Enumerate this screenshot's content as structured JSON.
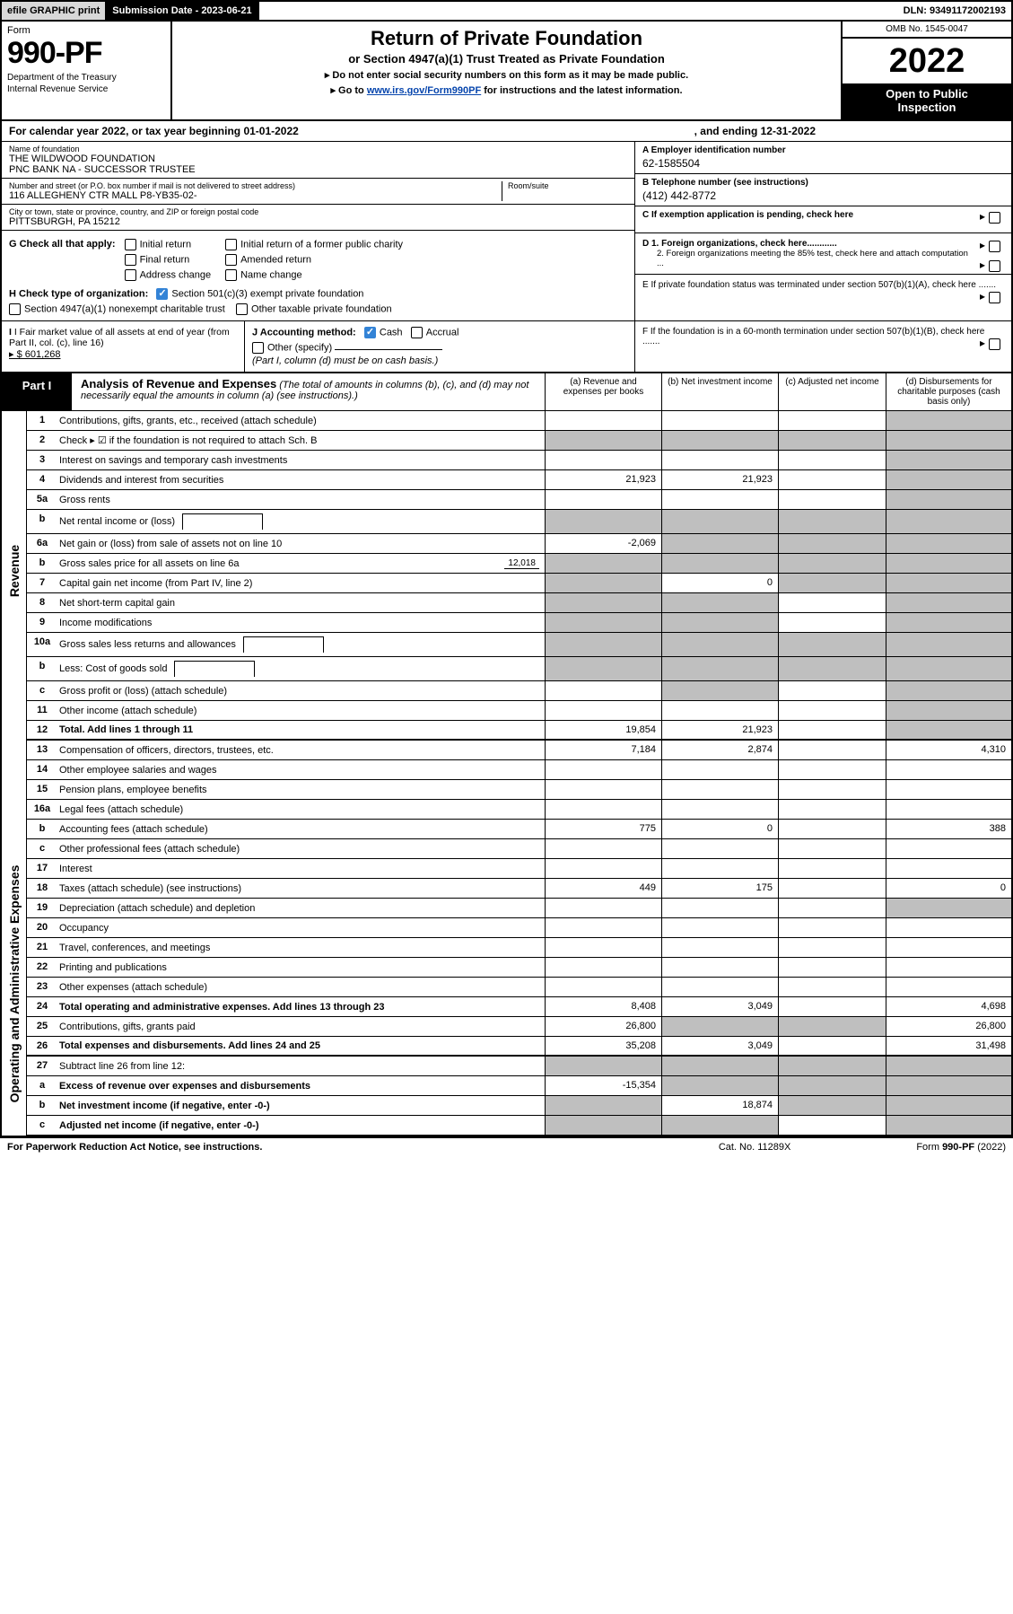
{
  "top_bar": {
    "efile": "efile GRAPHIC print",
    "submission_label": "Submission Date - 2023-06-21",
    "dln": "DLN: 93491172002193"
  },
  "header": {
    "form_word": "Form",
    "form_number": "990-PF",
    "dept": "Department of the Treasury",
    "irs": "Internal Revenue Service",
    "title": "Return of Private Foundation",
    "subtitle": "or Section 4947(a)(1) Trust Treated as Private Foundation",
    "instr1": "▸ Do not enter social security numbers on this form as it may be made public.",
    "instr2_pre": "▸ Go to ",
    "instr2_link": "www.irs.gov/Form990PF",
    "instr2_post": " for instructions and the latest information.",
    "omb": "OMB No. 1545-0047",
    "year": "2022",
    "inspect1": "Open to Public",
    "inspect2": "Inspection"
  },
  "calendar": {
    "text": "For calendar year 2022, or tax year beginning 01-01-2022",
    "ending": ", and ending 12-31-2022"
  },
  "foundation": {
    "name_lbl": "Name of foundation",
    "name1": "THE WILDWOOD FOUNDATION",
    "name2": "PNC BANK NA - SUCCESSOR TRUSTEE",
    "addr_lbl": "Number and street (or P.O. box number if mail is not delivered to street address)",
    "addr": "116 ALLEGHENY CTR MALL P8-YB35-02-",
    "room_lbl": "Room/suite",
    "city_lbl": "City or town, state or province, country, and ZIP or foreign postal code",
    "city": "PITTSBURGH, PA  15212",
    "ein_lbl": "A Employer identification number",
    "ein": "62-1585504",
    "phone_lbl": "B Telephone number (see instructions)",
    "phone": "(412) 442-8772",
    "c_lbl": "C If exemption application is pending, check here"
  },
  "checks": {
    "g_lbl": "G Check all that apply:",
    "g_opts": [
      "Initial return",
      "Final return",
      "Address change",
      "Initial return of a former public charity",
      "Amended return",
      "Name change"
    ],
    "h_lbl": "H Check type of organization:",
    "h1": "Section 501(c)(3) exempt private foundation",
    "h2": "Section 4947(a)(1) nonexempt charitable trust",
    "h3": "Other taxable private foundation",
    "d_lbl": "D 1. Foreign organizations, check here............",
    "d2": "2. Foreign organizations meeting the 85% test, check here and attach computation ...",
    "e_lbl": "E  If private foundation status was terminated under section 507(b)(1)(A), check here .......",
    "i_lbl": "I Fair market value of all assets at end of year (from Part II, col. (c), line 16)",
    "i_amt": "▸ $  601,268",
    "j_lbl": "J Accounting method:",
    "j_cash": "Cash",
    "j_accrual": "Accrual",
    "j_other": "Other (specify)",
    "j_note": "(Part I, column (d) must be on cash basis.)",
    "f_lbl": "F  If the foundation is in a 60-month termination under section 507(b)(1)(B), check here ......."
  },
  "part1": {
    "tab": "Part I",
    "title": "Analysis of Revenue and Expenses",
    "note": "(The total of amounts in columns (b), (c), and (d) may not necessarily equal the amounts in column (a) (see instructions).)",
    "col_a": "(a)  Revenue and expenses per books",
    "col_b": "(b)  Net investment income",
    "col_c": "(c)  Adjusted net income",
    "col_d": "(d)  Disbursements for charitable purposes (cash basis only)"
  },
  "side_labels": {
    "revenue": "Revenue",
    "expenses": "Operating and Administrative Expenses"
  },
  "lines": [
    {
      "num": "1",
      "desc": "Contributions, gifts, grants, etc., received (attach schedule)",
      "a": "",
      "b": "",
      "c": "",
      "d": "",
      "d_grey": true,
      "c_grey": false
    },
    {
      "num": "2",
      "desc": "Check ▸ ☑ if the foundation is not required to attach Sch. B",
      "dots": true,
      "no_cells": true
    },
    {
      "num": "3",
      "desc": "Interest on savings and temporary cash investments",
      "a": "",
      "b": "",
      "c": "",
      "d": "",
      "d_grey": true
    },
    {
      "num": "4",
      "desc": "Dividends and interest from securities",
      "dots": true,
      "a": "21,923",
      "b": "21,923",
      "c": "",
      "d": "",
      "d_grey": true
    },
    {
      "num": "5a",
      "desc": "Gross rents",
      "dots": true,
      "a": "",
      "b": "",
      "c": "",
      "d": "",
      "d_grey": true
    },
    {
      "num": "b",
      "desc": "Net rental income or (loss)",
      "inset": true,
      "a": "",
      "b": "",
      "c": "",
      "d": "",
      "all_grey": true
    },
    {
      "num": "6a",
      "desc": "Net gain or (loss) from sale of assets not on line 10",
      "a": "-2,069",
      "b": "",
      "c": "",
      "d": "",
      "bcd_grey": true
    },
    {
      "num": "b",
      "desc": "Gross sales price for all assets on line 6a",
      "inset_val": "12,018",
      "all_grey": true
    },
    {
      "num": "7",
      "desc": "Capital gain net income (from Part IV, line 2)",
      "dots": true,
      "a": "",
      "b": "0",
      "c": "",
      "d": "",
      "a_grey": true,
      "cd_grey": true
    },
    {
      "num": "8",
      "desc": "Net short-term capital gain",
      "dots": true,
      "a": "",
      "b": "",
      "c": "",
      "d": "",
      "ab_grey": true,
      "d_grey": true
    },
    {
      "num": "9",
      "desc": "Income modifications",
      "dots": true,
      "a": "",
      "b": "",
      "c": "",
      "d": "",
      "ab_grey": true,
      "d_grey": true
    },
    {
      "num": "10a",
      "desc": "Gross sales less returns and allowances",
      "inset": true,
      "all_grey": true
    },
    {
      "num": "b",
      "desc": "Less: Cost of goods sold",
      "dots": true,
      "inset": true,
      "all_grey": true
    },
    {
      "num": "c",
      "desc": "Gross profit or (loss) (attach schedule)",
      "dots": true,
      "a": "",
      "b": "",
      "c": "",
      "d": "",
      "b_grey": true,
      "d_grey": true
    },
    {
      "num": "11",
      "desc": "Other income (attach schedule)",
      "dots": true,
      "a": "",
      "b": "",
      "c": "",
      "d": "",
      "d_grey": true
    },
    {
      "num": "12",
      "desc": "Total. Add lines 1 through 11",
      "dots": true,
      "bold": true,
      "a": "19,854",
      "b": "21,923",
      "c": "",
      "d": "",
      "d_grey": true
    },
    {
      "num": "13",
      "desc": "Compensation of officers, directors, trustees, etc.",
      "a": "7,184",
      "b": "2,874",
      "c": "",
      "d": "4,310"
    },
    {
      "num": "14",
      "desc": "Other employee salaries and wages",
      "dots": true,
      "a": "",
      "b": "",
      "c": "",
      "d": ""
    },
    {
      "num": "15",
      "desc": "Pension plans, employee benefits",
      "dots": true,
      "a": "",
      "b": "",
      "c": "",
      "d": ""
    },
    {
      "num": "16a",
      "desc": "Legal fees (attach schedule)",
      "dots": true,
      "a": "",
      "b": "",
      "c": "",
      "d": ""
    },
    {
      "num": "b",
      "desc": "Accounting fees (attach schedule)",
      "dots": true,
      "a": "775",
      "b": "0",
      "c": "",
      "d": "388"
    },
    {
      "num": "c",
      "desc": "Other professional fees (attach schedule)",
      "dots": true,
      "a": "",
      "b": "",
      "c": "",
      "d": ""
    },
    {
      "num": "17",
      "desc": "Interest",
      "dots": true,
      "a": "",
      "b": "",
      "c": "",
      "d": ""
    },
    {
      "num": "18",
      "desc": "Taxes (attach schedule) (see instructions)",
      "dots": true,
      "a": "449",
      "b": "175",
      "c": "",
      "d": "0"
    },
    {
      "num": "19",
      "desc": "Depreciation (attach schedule) and depletion",
      "dots": true,
      "a": "",
      "b": "",
      "c": "",
      "d": "",
      "d_grey": true
    },
    {
      "num": "20",
      "desc": "Occupancy",
      "dots": true,
      "a": "",
      "b": "",
      "c": "",
      "d": ""
    },
    {
      "num": "21",
      "desc": "Travel, conferences, and meetings",
      "dots": true,
      "a": "",
      "b": "",
      "c": "",
      "d": ""
    },
    {
      "num": "22",
      "desc": "Printing and publications",
      "dots": true,
      "a": "",
      "b": "",
      "c": "",
      "d": ""
    },
    {
      "num": "23",
      "desc": "Other expenses (attach schedule)",
      "dots": true,
      "a": "",
      "b": "",
      "c": "",
      "d": ""
    },
    {
      "num": "24",
      "desc": "Total operating and administrative expenses. Add lines 13 through 23",
      "dots": true,
      "bold": true,
      "a": "8,408",
      "b": "3,049",
      "c": "",
      "d": "4,698"
    },
    {
      "num": "25",
      "desc": "Contributions, gifts, grants paid",
      "dots": true,
      "a": "26,800",
      "b": "",
      "c": "",
      "d": "26,800",
      "bc_grey": true
    },
    {
      "num": "26",
      "desc": "Total expenses and disbursements. Add lines 24 and 25",
      "bold": true,
      "a": "35,208",
      "b": "3,049",
      "c": "",
      "d": "31,498"
    },
    {
      "num": "27",
      "desc": "Subtract line 26 from line 12:",
      "all_grey": true
    },
    {
      "num": "a",
      "desc": "Excess of revenue over expenses and disbursements",
      "bold": true,
      "a": "-15,354",
      "b": "",
      "c": "",
      "d": "",
      "bcd_grey": true
    },
    {
      "num": "b",
      "desc": "Net investment income (if negative, enter -0-)",
      "bold": true,
      "a": "",
      "b": "18,874",
      "c": "",
      "d": "",
      "a_grey": true,
      "cd_grey": true
    },
    {
      "num": "c",
      "desc": "Adjusted net income (if negative, enter -0-)",
      "dots": true,
      "bold": true,
      "a": "",
      "b": "",
      "c": "",
      "d": "",
      "ab_grey": true,
      "d_grey": true
    }
  ],
  "footer": {
    "left": "For Paperwork Reduction Act Notice, see instructions.",
    "mid": "Cat. No. 11289X",
    "right": "Form 990-PF (2022)"
  },
  "colors": {
    "grey_cell": "#bfbfbf",
    "link": "#0645ad",
    "checkbox_checked": "#3383d6"
  }
}
